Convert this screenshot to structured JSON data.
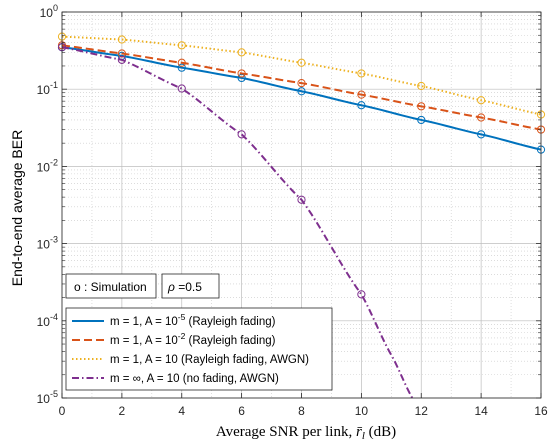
{
  "chart_data": {
    "type": "line",
    "xlabel": "Average SNR per link, r̄ₗ (dB)",
    "xlabel_main": "Average SNR per link, ",
    "xlabel_sym": "r̄",
    "xlabel_sub": "l",
    "xlabel_unit": " (dB)",
    "ylabel": "End-to-end average BER",
    "xlim": [
      0,
      16
    ],
    "ylim": [
      1e-05,
      1
    ],
    "yscale": "log",
    "grid": true,
    "minor_grid": true,
    "x_ticks": [
      "0",
      "2",
      "4",
      "6",
      "8",
      "10",
      "12",
      "14",
      "16"
    ],
    "y_tick_mantissa": [
      "10",
      "10",
      "10",
      "10",
      "10",
      "10"
    ],
    "y_tick_exponents": [
      "0",
      "-1",
      "-2",
      "-3",
      "-4",
      "-5"
    ],
    "annotations": {
      "simulation_marker": "o : Simulation",
      "rho_symbol": "ρ",
      "rho_value": " =0.5"
    },
    "legend_position": "lower-left",
    "series": [
      {
        "name_prefix": "m = 1, A = 10",
        "name_exp": "-5",
        "name_suffix": " (Rayleigh fading)",
        "color": "#0072BD",
        "style": "solid",
        "x": [
          0,
          2,
          4,
          6,
          8,
          10,
          12,
          14,
          16
        ],
        "values": [
          0.35,
          0.27,
          0.19,
          0.14,
          0.094,
          0.062,
          0.04,
          0.026,
          0.0165
        ],
        "sim_x": [
          0,
          2,
          4,
          6,
          8,
          10,
          12,
          14,
          16
        ]
      },
      {
        "name_prefix": "m = 1, A = 10",
        "name_exp": "-2",
        "name_suffix": " (Rayleigh fading)",
        "color": "#D95319",
        "style": "dashed",
        "x": [
          0,
          2,
          4,
          6,
          8,
          10,
          12,
          14,
          16
        ],
        "values": [
          0.37,
          0.29,
          0.22,
          0.16,
          0.12,
          0.085,
          0.06,
          0.043,
          0.03
        ],
        "sim_x": [
          0,
          2,
          4,
          6,
          8,
          10,
          12,
          14,
          16
        ]
      },
      {
        "name_prefix": "m = 1, A = 10",
        "name_exp": "",
        "name_suffix": " (Rayleigh fading, AWGN)",
        "color": "#EDB120",
        "style": "dotted",
        "x": [
          0,
          2,
          4,
          6,
          8,
          10,
          12,
          14,
          16
        ],
        "values": [
          0.48,
          0.44,
          0.37,
          0.3,
          0.22,
          0.16,
          0.11,
          0.072,
          0.047
        ],
        "sim_x": [
          0,
          2,
          4,
          6,
          8,
          10,
          12,
          14,
          16
        ]
      },
      {
        "name_prefix": "m = ∞, A = 10",
        "name_exp": "",
        "name_suffix": " (no fading, AWGN)",
        "color": "#7E2F8E",
        "style": "dashdot",
        "x": [
          0,
          2,
          4,
          6,
          8,
          10,
          11,
          11.7
        ],
        "values": [
          0.35,
          0.24,
          0.102,
          0.026,
          0.0037,
          0.00022,
          3.6e-05,
          1e-05
        ],
        "sim_x": [
          0,
          2,
          4,
          6,
          8,
          10
        ]
      }
    ]
  }
}
